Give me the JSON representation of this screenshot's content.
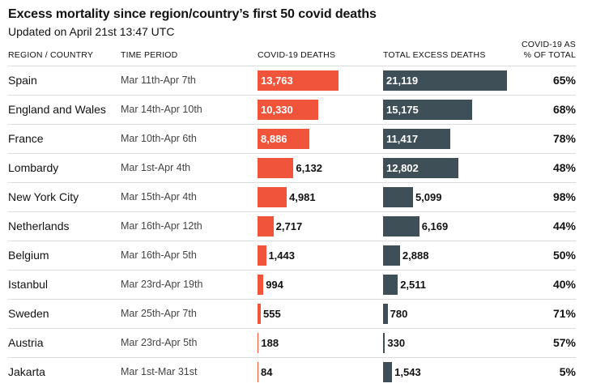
{
  "title": "Excess mortality since region/country’s first 50 covid deaths",
  "subtitle": "Updated on April 21st 13:47 UTC",
  "headers": {
    "region": "REGION / COUNTRY",
    "period": "TIME PERIOD",
    "covid": "COVID-19 DEATHS",
    "excess": "TOTAL EXCESS DEATHS",
    "share_line1": "COVID-19 AS",
    "share_line2": "% OF TOTAL"
  },
  "colors": {
    "covid": "#f0553b",
    "excess": "#3f4f58"
  },
  "chart_data": {
    "type": "table",
    "title": "Excess mortality since region/country’s first 50 covid deaths",
    "columns": [
      "REGION / COUNTRY",
      "TIME PERIOD",
      "COVID-19 DEATHS",
      "TOTAL EXCESS DEATHS",
      "COVID-19 AS % OF TOTAL"
    ],
    "rows": [
      {
        "region": "Spain",
        "period": "Mar 11th-Apr 7th",
        "covid": 13763,
        "covid_label": "13,763",
        "excess": 21119,
        "excess_label": "21,119",
        "share": "65%"
      },
      {
        "region": "England and Wales",
        "period": "Mar 14th-Apr 10th",
        "covid": 10330,
        "covid_label": "10,330",
        "excess": 15175,
        "excess_label": "15,175",
        "share": "68%"
      },
      {
        "region": "France",
        "period": "Mar 10th-Apr 6th",
        "covid": 8886,
        "covid_label": "8,886",
        "excess": 11417,
        "excess_label": "11,417",
        "share": "78%"
      },
      {
        "region": "Lombardy",
        "period": "Mar 1st-Apr 4th",
        "covid": 6132,
        "covid_label": "6,132",
        "excess": 12802,
        "excess_label": "12,802",
        "share": "48%"
      },
      {
        "region": "New York City",
        "period": "Mar 15th-Apr 4th",
        "covid": 4981,
        "covid_label": "4,981",
        "excess": 5099,
        "excess_label": "5,099",
        "share": "98%"
      },
      {
        "region": "Netherlands",
        "period": "Mar 16th-Apr 12th",
        "covid": 2717,
        "covid_label": "2,717",
        "excess": 6169,
        "excess_label": "6,169",
        "share": "44%"
      },
      {
        "region": "Belgium",
        "period": "Mar 16th-Apr 5th",
        "covid": 1443,
        "covid_label": "1,443",
        "excess": 2888,
        "excess_label": "2,888",
        "share": "50%"
      },
      {
        "region": "Istanbul",
        "period": "Mar 23rd-Apr 19th",
        "covid": 994,
        "covid_label": "994",
        "excess": 2511,
        "excess_label": "2,511",
        "share": "40%"
      },
      {
        "region": "Sweden",
        "period": "Mar 25th-Apr 7th",
        "covid": 555,
        "covid_label": "555",
        "excess": 780,
        "excess_label": "780",
        "share": "71%"
      },
      {
        "region": "Austria",
        "period": "Mar 23rd-Apr 5th",
        "covid": 188,
        "covid_label": "188",
        "excess": 330,
        "excess_label": "330",
        "share": "57%"
      },
      {
        "region": "Jakarta",
        "period": "Mar 1st-Mar 31st",
        "covid": 84,
        "covid_label": "84",
        "excess": 1543,
        "excess_label": "1,543",
        "share": "5%"
      }
    ],
    "xlim": [
      0,
      21119
    ]
  }
}
